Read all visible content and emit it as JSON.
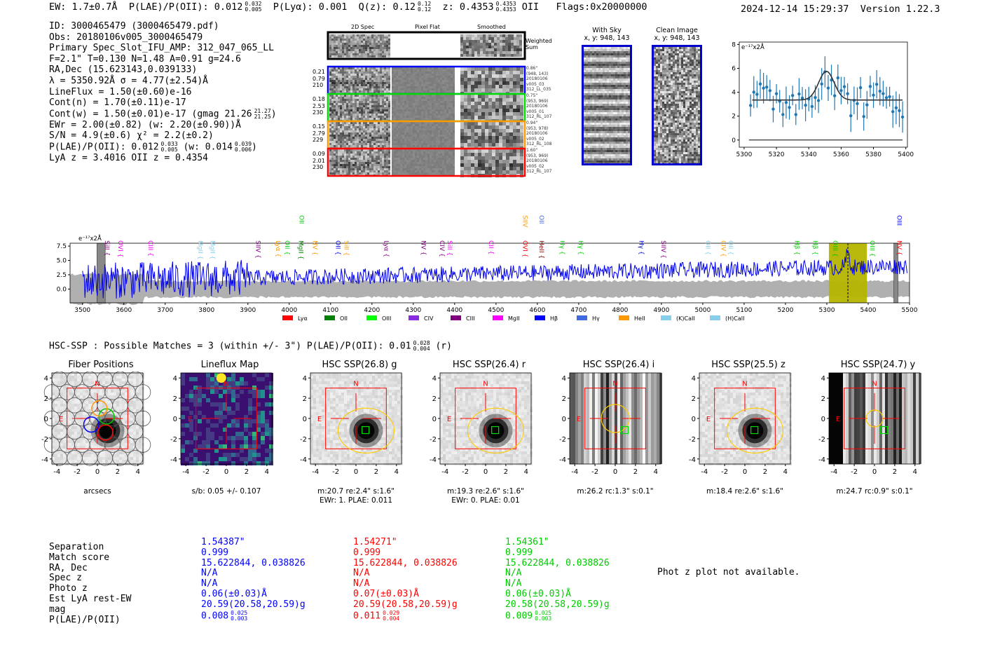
{
  "header": {
    "ew": "EW: 1.7±0.7Å",
    "plae_label": "P(LAE)/P(OII): 0.012",
    "plae_hi": "0.032",
    "plae_lo": "0.005",
    "plya": "P(Lyα): 0.001",
    "qz_label": "Q(z): 0.12",
    "qz_hi": "0.12",
    "qz_lo": "0.12",
    "z_label": "z: 0.4353",
    "z_hi": "0.4353",
    "z_lo": "0.4353",
    "z_line": "OII",
    "flags": "Flags:0x20000000",
    "timestamp": "2024-12-14 15:29:37",
    "version": "Version 1.22.3"
  },
  "info": {
    "id": "ID: 3000465479 (3000465479.pdf)",
    "obs": "Obs: 20180106v005_3000465479",
    "primary": "Primary Spec_Slot_IFU_AMP: 312_047_065_LL",
    "fit": "F=2.1\"  T=0.130  N=1.48  A=0.91  g=24.6",
    "radec": "RA,Dec (15.623143,0.039133)",
    "lambda": "λ = 5350.92Å  σ = 4.77(±2.54)Å",
    "lineflux": "LineFlux = 1.50(±0.60)e-16",
    "contn": "Cont(n) = 1.70(±0.11)e-17",
    "contw": "Cont(w) = 1.50(±0.01)e-17 (gmag 21.26",
    "contw_hi": "21.27",
    "contw_lo": "21.25",
    "contw_end": ")",
    "ewr": "EWr = 2.00(±0.82) (w: 2.20(±0.90))Å",
    "sn": "S/N = 4.9(±0.6)  χ² = 2.2(±0.2)",
    "plae": "P(LAE)/P(OII): 0.012",
    "plae_hi": "0.033",
    "plae_lo": "0.005",
    "plae_w": "(w: 0.014",
    "plae_w_hi": "0.039",
    "plae_w_lo": "0.006",
    "plae_w_end": ")",
    "lyaz": "LyA z = 3.4016  OII z = 0.4354"
  },
  "cutouts": {
    "col_2d": "2D Spec",
    "col_flat": "Pixel Flat",
    "col_smooth": "Smoothed",
    "weighted": "Weighted",
    "sum": "Sum",
    "rows": [
      {
        "color": "#0000ff",
        "l1": "0.21",
        "l2": "0.79",
        "l3": "210",
        "r1": "0.86\"",
        "r2": "(948, 143)",
        "r3": "20180106",
        "r4": "v005_03",
        "r5": "312_LL_035"
      },
      {
        "color": "#00dd00",
        "l1": "0.18",
        "l2": "2.53",
        "l3": "230",
        "r1": "0.75\"",
        "r2": "(953, 969)",
        "r3": "20180106",
        "r4": "v005_01",
        "r5": "312_RL_107"
      },
      {
        "color": "#ff9900",
        "l1": "0.15",
        "l2": "2.79",
        "l3": "229",
        "r1": "0.94\"",
        "r2": "(953, 978)",
        "r3": "20180106",
        "r4": "v005_02",
        "r5": "312_RL_108"
      },
      {
        "color": "#ff0000",
        "l1": "0.09",
        "l2": "2.01",
        "l3": "230",
        "r1": "1.60\"",
        "r2": "(953, 969)",
        "r3": "20180106",
        "r4": "v005_02",
        "r5": "312_RL_107"
      }
    ]
  },
  "sky": {
    "with_sky_title": "With Sky",
    "with_sky_xy": "x, y: 948, 143",
    "clean_title": "Clean Image",
    "clean_xy": "x, y: 948, 143"
  },
  "zoom_plot": {
    "ylabel": "e⁻¹⁷x2Å",
    "yticks": [
      "0",
      "2",
      "4",
      "6",
      "8"
    ],
    "xticks": [
      "5300",
      "5320",
      "5340",
      "5360",
      "5380",
      "5400"
    ],
    "color": "#1f77b4"
  },
  "full_spectrum": {
    "ylabel": "e⁻¹⁷x2Å",
    "yticks": [
      "0.0",
      "2.5",
      "5.0",
      "7.5"
    ],
    "xticks": [
      "3500",
      "3600",
      "3700",
      "3800",
      "3900",
      "4000",
      "4100",
      "4200",
      "4300",
      "4400",
      "4500",
      "4600",
      "4700",
      "4800",
      "4900",
      "5000",
      "5100",
      "5200",
      "5300",
      "5400",
      "5500"
    ],
    "line_labels": [
      {
        "text": "SiII",
        "color": "#800080",
        "w": 3550,
        "level": 0
      },
      {
        "text": "OVI",
        "color": "#ee00ee",
        "w": 3582,
        "level": 0
      },
      {
        "text": "CIII",
        "color": "#ee00ee",
        "w": 3655,
        "level": 0
      },
      {
        "text": "MgII",
        "color": "#87ceeb",
        "w": 3775,
        "level": 0
      },
      {
        "text": "MgII",
        "color": "#87ceeb",
        "w": 3805,
        "level": 0
      },
      {
        "text": "SIIV",
        "color": "#800080",
        "w": 3915,
        "level": 0
      },
      {
        "text": "Lyα",
        "color": "#ff9900",
        "w": 3963,
        "level": 0
      },
      {
        "text": "OII",
        "color": "#00cc00",
        "w": 3985,
        "level": 0
      },
      {
        "text": "MgII",
        "color": "#008000",
        "w": 4018,
        "level": 0
      },
      {
        "text": "OII",
        "color": "#00cc00",
        "w": 4020,
        "level": 1
      },
      {
        "text": "NV",
        "color": "#ff9900",
        "w": 4052,
        "level": 0
      },
      {
        "text": "OII",
        "color": "#0000ff",
        "w": 4108,
        "level": 0
      },
      {
        "text": "SiII",
        "color": "#ff9900",
        "w": 4128,
        "level": 0
      },
      {
        "text": "Lyα",
        "color": "#800080",
        "w": 4225,
        "level": 0
      },
      {
        "text": "NV",
        "color": "#800080",
        "w": 4315,
        "level": 0
      },
      {
        "text": "CIV",
        "color": "#800080",
        "w": 4360,
        "level": 0
      },
      {
        "text": "SiII",
        "color": "#ee00ee",
        "w": 4378,
        "level": 0
      },
      {
        "text": "CII",
        "color": "#ee00ee",
        "w": 4478,
        "level": 0
      },
      {
        "text": "OVI",
        "color": "#ff0000",
        "w": 4560,
        "level": 0
      },
      {
        "text": "SIIV",
        "color": "#ff9900",
        "w": 4560,
        "level": 1
      },
      {
        "text": "HeII",
        "color": "#800000",
        "w": 4600,
        "level": 0
      },
      {
        "text": "OII",
        "color": "#4169e1",
        "w": 4600,
        "level": 1
      },
      {
        "text": "Hγ",
        "color": "#00cc00",
        "w": 4650,
        "level": 0
      },
      {
        "text": "Hγ",
        "color": "#00cc00",
        "w": 4695,
        "level": 0
      },
      {
        "text": "Hγ",
        "color": "#0000cc",
        "w": 4842,
        "level": 0
      },
      {
        "text": "SIIV",
        "color": "#800080",
        "w": 4895,
        "level": 0
      },
      {
        "text": "OII",
        "color": "#87ceeb",
        "w": 5003,
        "level": 0
      },
      {
        "text": "CIV",
        "color": "#ff9900",
        "w": 5040,
        "level": 0
      },
      {
        "text": "OII",
        "color": "#87ceeb",
        "w": 5058,
        "level": 0
      },
      {
        "text": "Hβ",
        "color": "#00cc00",
        "w": 5218,
        "level": 0
      },
      {
        "text": "Hβ",
        "color": "#00cc00",
        "w": 5262,
        "level": 0
      },
      {
        "text": "OIII",
        "color": "#00cc00",
        "w": 5310,
        "level": 0
      },
      {
        "text": "OIII",
        "color": "#00cc00",
        "w": 5400,
        "level": 0
      },
      {
        "text": "NV",
        "color": "#ff0000",
        "w": 5465,
        "level": 0
      },
      {
        "text": "OIII",
        "color": "#0000ff",
        "w": 5465,
        "level": 1
      }
    ],
    "legend": [
      {
        "text": "Lyα",
        "color": "#ff0000"
      },
      {
        "text": "OII",
        "color": "#008000"
      },
      {
        "text": "OIII",
        "color": "#00ff00"
      },
      {
        "text": "CIV",
        "color": "#8a2be2"
      },
      {
        "text": "CIII",
        "color": "#800080"
      },
      {
        "text": "MgII",
        "color": "#ff00ff"
      },
      {
        "text": "Hβ",
        "color": "#0000ff"
      },
      {
        "text": "Hγ",
        "color": "#4169e1"
      },
      {
        "text": "HeII",
        "color": "#ff9900"
      },
      {
        "text": "(K)CaII",
        "color": "#87ceeb"
      },
      {
        "text": "(H)CaII",
        "color": "#87ceeb"
      }
    ]
  },
  "hsc": {
    "summary": "HSC-SSP : Possible Matches = 3 (within +/- 3\")  P(LAE)/P(OII): 0.01",
    "summary_hi": "0.028",
    "summary_lo": "0.004",
    "summary_end": "(r)",
    "panels": [
      {
        "title": "Fiber Positions",
        "cap1": "arcsecs",
        "cap2": ""
      },
      {
        "title": "Lineflux Map",
        "cap1": "s/b: 0.05 +/- 0.107",
        "cap2": ""
      },
      {
        "title": "HSC SSP(26.8) g",
        "cap1": "m:20.7  re:2.4\"  s:1.6\"",
        "cap2": "EWr: 1. PLAE: 0.011"
      },
      {
        "title": "HSC SSP(26.4) r",
        "cap1": "m:19.3  re:2.6\"  s:1.6\"",
        "cap2": "EWr: 0. PLAE: 0.01"
      },
      {
        "title": "HSC SSP(26.4) i",
        "cap1": "m:26.2 rc:1.3\"  s:0.1\"",
        "cap2": ""
      },
      {
        "title": "HSC SSP(25.5) z",
        "cap1": "m:18.4  re:2.6\"  s:1.6\"",
        "cap2": ""
      },
      {
        "title": "HSC SSP(24.7) y",
        "cap1": "m:24.7 rc:0.9\"  s:0.1\"",
        "cap2": ""
      }
    ],
    "ticks": [
      "-4",
      "-2",
      "0",
      "2",
      "4"
    ],
    "north": "N",
    "east": "E"
  },
  "matches": {
    "labels": [
      "Separation",
      "Match score",
      "RA, Dec",
      "Spec z",
      "Photo z",
      "Est LyA rest-EW",
      "mag",
      "P(LAE)/P(OII)"
    ],
    "columns": [
      {
        "color": "#0000ff",
        "sep": "1.54387\"",
        "score": "0.999",
        "radec": "15.622844, 0.038826",
        "specz": "N/A",
        "photz": "N/A",
        "ew": "0.06(±0.03)Å",
        "mag": "20.59(20.58,20.59)g",
        "plae": "0.008",
        "plae_hi": "0.025",
        "plae_lo": "0.003"
      },
      {
        "color": "#ff0000",
        "sep": "1.54271\"",
        "score": "0.999",
        "radec": "15.622844, 0.038826",
        "specz": "N/A",
        "photz": "N/A",
        "ew": "0.07(±0.03)Å",
        "mag": "20.59(20.58,20.59)g",
        "plae": "0.011",
        "plae_hi": "0.029",
        "plae_lo": "0.004"
      },
      {
        "color": "#00cc00",
        "sep": "1.54361\"",
        "score": "0.999",
        "radec": "15.622844, 0.038826",
        "specz": "N/A",
        "photz": "N/A",
        "ew": "0.06(±0.03)Å",
        "mag": "20.58(20.58,20.59)g",
        "plae": "0.009",
        "plae_hi": "0.025",
        "plae_lo": "0.003"
      }
    ],
    "photz_note": "Phot z plot not available."
  }
}
